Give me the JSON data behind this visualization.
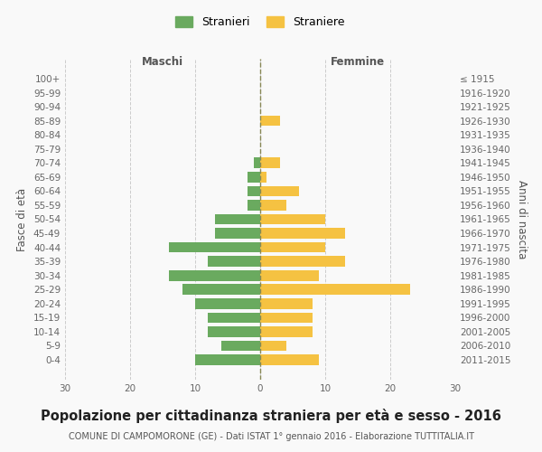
{
  "age_groups": [
    "0-4",
    "5-9",
    "10-14",
    "15-19",
    "20-24",
    "25-29",
    "30-34",
    "35-39",
    "40-44",
    "45-49",
    "50-54",
    "55-59",
    "60-64",
    "65-69",
    "70-74",
    "75-79",
    "80-84",
    "85-89",
    "90-94",
    "95-99",
    "100+"
  ],
  "birth_years": [
    "2011-2015",
    "2006-2010",
    "2001-2005",
    "1996-2000",
    "1991-1995",
    "1986-1990",
    "1981-1985",
    "1976-1980",
    "1971-1975",
    "1966-1970",
    "1961-1965",
    "1956-1960",
    "1951-1955",
    "1946-1950",
    "1941-1945",
    "1936-1940",
    "1931-1935",
    "1926-1930",
    "1921-1925",
    "1916-1920",
    "≤ 1915"
  ],
  "maschi": [
    10,
    6,
    8,
    8,
    10,
    12,
    14,
    8,
    14,
    7,
    7,
    2,
    2,
    2,
    1,
    0,
    0,
    0,
    0,
    0,
    0
  ],
  "femmine": [
    9,
    4,
    8,
    8,
    8,
    23,
    9,
    13,
    10,
    13,
    10,
    4,
    6,
    1,
    3,
    0,
    0,
    3,
    0,
    0,
    0
  ],
  "maschi_color": "#6aaa5f",
  "femmine_color": "#f5c242",
  "background_color": "#f9f9f9",
  "grid_color": "#cccccc",
  "title": "Popolazione per cittadinanza straniera per età e sesso - 2016",
  "subtitle": "COMUNE DI CAMPOMORONE (GE) - Dati ISTAT 1° gennaio 2016 - Elaborazione TUTTITALIA.IT",
  "xlabel_left": "Maschi",
  "xlabel_right": "Femmine",
  "ylabel_left": "Fasce di età",
  "ylabel_right": "Anni di nascita",
  "legend_maschi": "Stranieri",
  "legend_femmine": "Straniere",
  "xlim": 30,
  "bar_height": 0.75,
  "dashed_line_color": "#888855",
  "title_fontsize": 10.5,
  "subtitle_fontsize": 7,
  "axis_label_fontsize": 8.5,
  "tick_fontsize": 7.5
}
